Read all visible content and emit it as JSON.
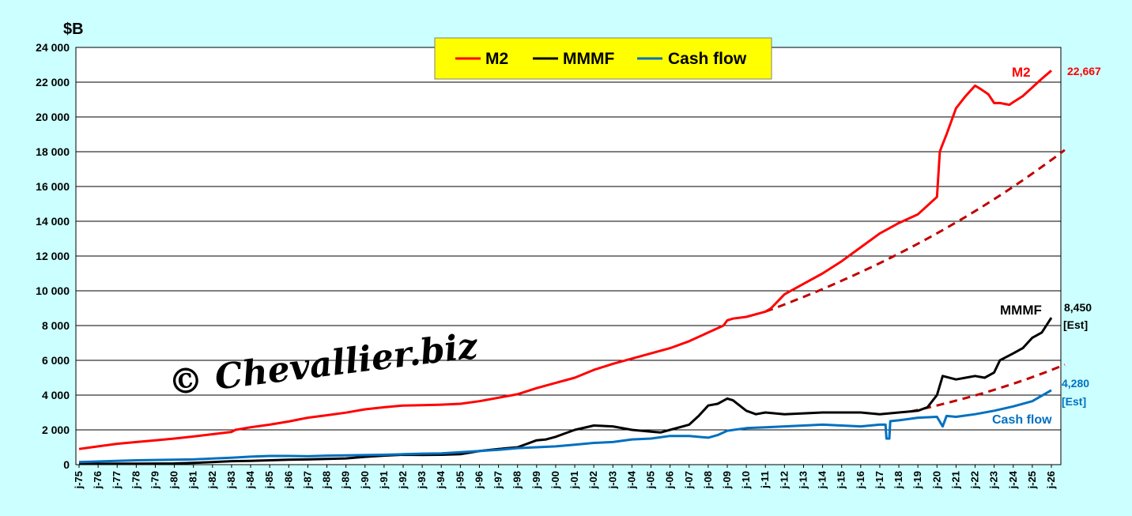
{
  "chart_data": {
    "type": "line",
    "ylabel": "$B",
    "ylim": [
      0,
      24000
    ],
    "yticks": [
      "0",
      "2 000",
      "4 000",
      "6 000",
      "8 000",
      "10 000",
      "12 000",
      "14 000",
      "16 000",
      "18 000",
      "20 000",
      "22 000",
      "24 000"
    ],
    "xlim": [
      1975.0,
      2026.0
    ],
    "xticks": [
      "j-75",
      "j-76",
      "j-77",
      "j-78",
      "j-79",
      "j-80",
      "j-81",
      "j-82",
      "j-83",
      "j-84",
      "j-85",
      "j-86",
      "j-87",
      "j-88",
      "j-89",
      "j-90",
      "j-91",
      "j-92",
      "j-93",
      "j-94",
      "j-95",
      "j-96",
      "j-97",
      "j-98",
      "j-99",
      "j-00",
      "j-01",
      "j-02",
      "j-03",
      "j-04",
      "j-05",
      "j-06",
      "j-07",
      "j-08",
      "j-09",
      "j-10",
      "j-11",
      "j-12",
      "j-13",
      "j-14",
      "j-15",
      "j-16",
      "j-17",
      "j-18",
      "j-19",
      "j-20",
      "j-21",
      "j-22",
      "j-23",
      "j-24",
      "j-25",
      "j-26"
    ],
    "grid": true,
    "legend_position": "top-center",
    "legend_bg": "#ffff00",
    "series": [
      {
        "name": "M2",
        "color": "#ff0000",
        "x": [
          1975,
          1976,
          1977,
          1978,
          1979,
          1980,
          1981,
          1982,
          1983,
          1983.2,
          1984,
          1985,
          1986,
          1987,
          1988,
          1989,
          1990,
          1991,
          1992,
          1993,
          1994,
          1995,
          1996,
          1997,
          1998,
          1999,
          2000,
          2001,
          2002,
          2003,
          2004,
          2005,
          2006,
          2007,
          2008,
          2008.8,
          2009,
          2009.3,
          2010,
          2011,
          2011.3,
          2012,
          2013,
          2014,
          2015,
          2016,
          2017,
          2018,
          2019,
          2020,
          2020.15,
          2020.25,
          2020.5,
          2021,
          2021.5,
          2022,
          2022.3,
          2022.7,
          2023,
          2023.3,
          2023.8,
          2024,
          2024.5,
          2025,
          2025.5,
          2026
        ],
        "values": [
          900,
          1050,
          1200,
          1300,
          1400,
          1500,
          1620,
          1750,
          1880,
          2000,
          2150,
          2300,
          2480,
          2700,
          2840,
          2990,
          3180,
          3300,
          3400,
          3420,
          3450,
          3500,
          3650,
          3850,
          4050,
          4400,
          4700,
          5000,
          5450,
          5800,
          6100,
          6400,
          6700,
          7100,
          7600,
          8000,
          8300,
          8400,
          8500,
          8800,
          9000,
          9800,
          10400,
          11000,
          11700,
          12500,
          13300,
          13900,
          14400,
          15400,
          18000,
          18300,
          19000,
          20500,
          21200,
          21800,
          21600,
          21300,
          20800,
          20800,
          20700,
          20850,
          21200,
          21700,
          22200,
          22667
        ]
      },
      {
        "name": "MMMF",
        "color": "#000000",
        "x": [
          1975,
          1978,
          1980,
          1981,
          1982,
          1983,
          1984,
          1985,
          1986,
          1987,
          1988,
          1989,
          1990,
          1991,
          1992,
          1993,
          1994,
          1995,
          1996,
          1997,
          1998,
          1998.5,
          1999,
          1999.5,
          2000,
          2000.5,
          2001,
          2002,
          2003,
          2004,
          2005,
          2005.5,
          2006,
          2007,
          2007.5,
          2008,
          2008.5,
          2009,
          2009.3,
          2010,
          2010.5,
          2011,
          2012,
          2013,
          2014,
          2015,
          2016,
          2017,
          2018,
          2019,
          2019.5,
          2020,
          2020.3,
          2021,
          2021.5,
          2022,
          2022.5,
          2023,
          2023.3,
          2024,
          2024.5,
          2025,
          2025.5,
          2026
        ],
        "values": [
          50,
          60,
          70,
          100,
          150,
          200,
          220,
          250,
          280,
          300,
          330,
          360,
          450,
          520,
          570,
          560,
          570,
          600,
          780,
          900,
          1000,
          1200,
          1400,
          1450,
          1600,
          1800,
          2000,
          2250,
          2200,
          2000,
          1900,
          1850,
          2000,
          2300,
          2800,
          3400,
          3500,
          3800,
          3700,
          3100,
          2900,
          3000,
          2900,
          2950,
          3000,
          3000,
          3000,
          2900,
          3000,
          3100,
          3300,
          4000,
          5100,
          4900,
          5000,
          5100,
          5000,
          5300,
          6000,
          6400,
          6700,
          7300,
          7600,
          8450
        ]
      },
      {
        "name": "Cash flow",
        "color": "#0070c0",
        "x": [
          1975,
          1978,
          1980,
          1981,
          1982,
          1983,
          1984,
          1985,
          1986,
          1987,
          1988,
          1989,
          1990,
          1991,
          1992,
          1993,
          1994,
          1995,
          1996,
          1997,
          1998,
          1999,
          2000,
          2001,
          2002,
          2003,
          2004,
          2005,
          2006,
          2007,
          2008,
          2008.5,
          2009,
          2010,
          2011,
          2012,
          2013,
          2014,
          2015,
          2016,
          2017,
          2017.3,
          2017.35,
          2017.5,
          2017.55,
          2018,
          2019,
          2020,
          2020.3,
          2020.5,
          2021,
          2022,
          2023,
          2024,
          2025,
          2026
        ],
        "values": [
          150,
          250,
          280,
          300,
          350,
          400,
          460,
          500,
          500,
          480,
          520,
          530,
          550,
          570,
          600,
          630,
          650,
          720,
          780,
          850,
          950,
          1000,
          1050,
          1150,
          1250,
          1300,
          1450,
          1500,
          1650,
          1650,
          1550,
          1700,
          1950,
          2100,
          2150,
          2200,
          2250,
          2300,
          2250,
          2200,
          2300,
          2300,
          1500,
          1500,
          2500,
          2550,
          2700,
          2750,
          2200,
          2800,
          2750,
          2900,
          3100,
          3350,
          3650,
          4280
        ]
      }
    ],
    "trend_lines": [
      {
        "of": "M2",
        "color": "#c00000",
        "style": "dashed",
        "x": [
          2011,
          2026.7
        ],
        "values": [
          8800,
          18100
        ]
      },
      {
        "of": "MMMF",
        "color": "#c00000",
        "style": "dashed",
        "x": [
          2018.6,
          2026.7
        ],
        "values": [
          3050,
          5750
        ]
      }
    ],
    "annotations": {
      "m2_name": "M2",
      "m2_value": "22,667",
      "mmmf_name": "MMMF",
      "mmmf_value": "8,450",
      "mmmf_est": "[Est]",
      "cash_name": "Cash flow",
      "cash_value": "4,280",
      "cash_est": "[Est]"
    },
    "watermark": "© Chevallier.biz"
  }
}
